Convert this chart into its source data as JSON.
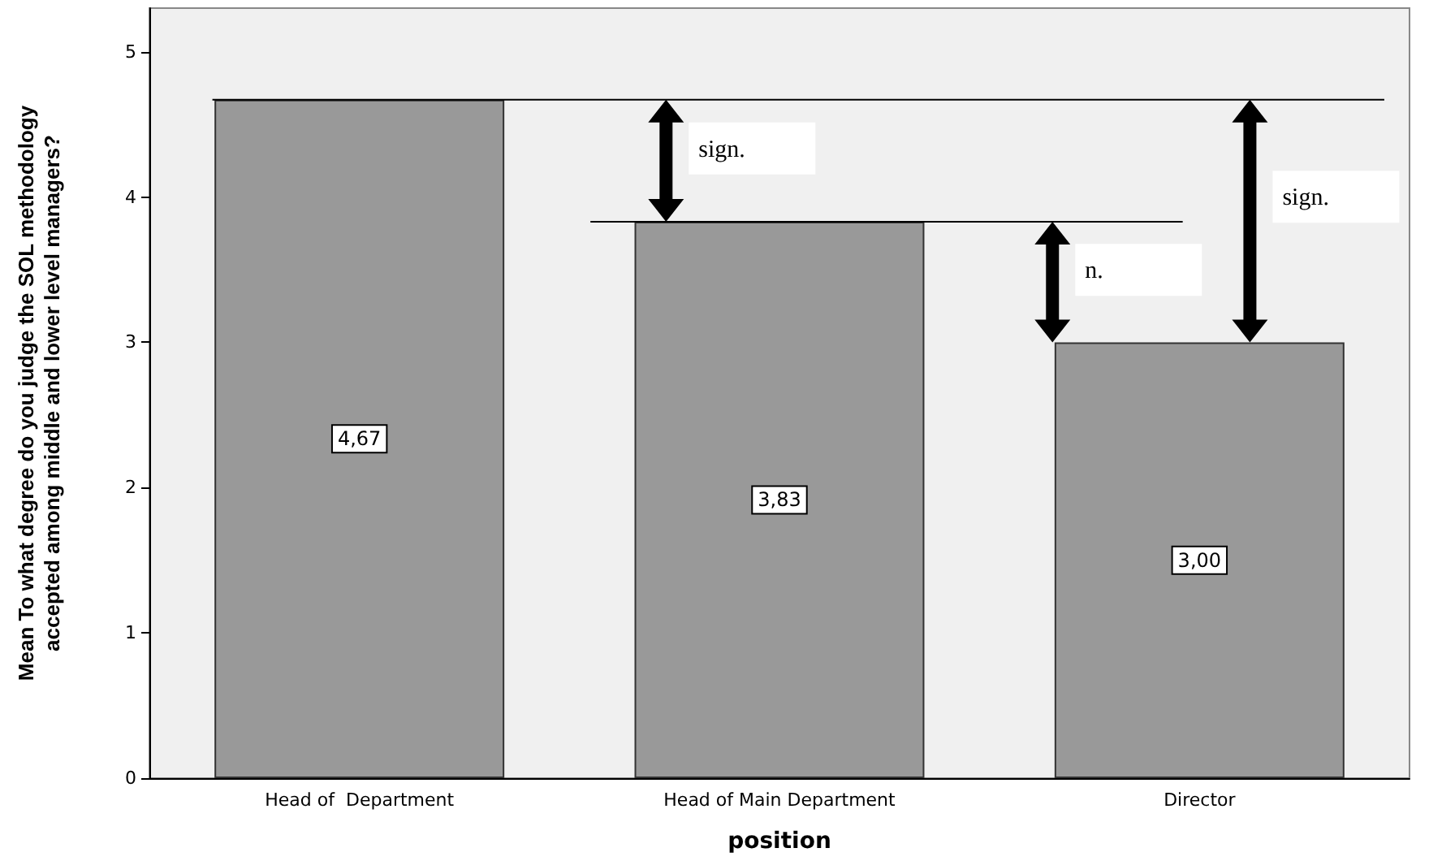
{
  "chart_data": {
    "type": "bar",
    "xlabel": "position",
    "ylabel": "Mean To what degree do you judge the SOL methodology\naccepted among middle and lower level managers?",
    "categories": [
      "Head of  Department",
      "Head of Main Department",
      "Director"
    ],
    "values": [
      4.67,
      3.83,
      3.0
    ],
    "value_labels": [
      "4,67",
      "3,83",
      "3,00"
    ],
    "color": "#999999",
    "ylim": [
      0,
      5.3
    ],
    "yticks": [
      0,
      1,
      2,
      3,
      4,
      5
    ],
    "grid": false,
    "ref_lines": [
      {
        "axis": "y",
        "value": 4.67,
        "color": "#000000"
      },
      {
        "axis": "y",
        "value": 3.83,
        "color": "#000000"
      }
    ],
    "annotations": [
      "sign.",
      "n.",
      "sign."
    ]
  }
}
